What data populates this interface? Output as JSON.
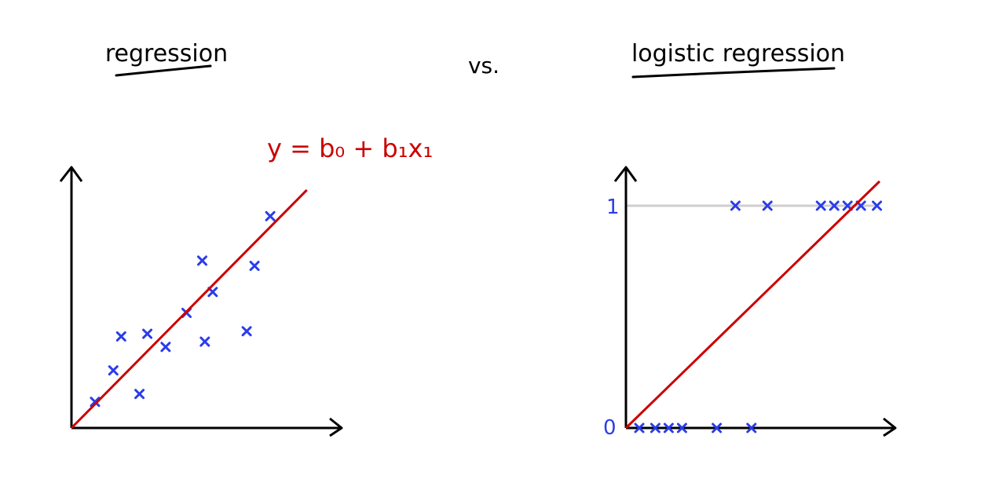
{
  "left_title": "regression",
  "vs_label": "vs.",
  "right_title": "logistic regression",
  "equation": "y = b₀ + b₁x₁",
  "right_y_ticks": [
    "1",
    "0"
  ],
  "point_marker": "x",
  "colors": {
    "axis": "#000000",
    "line": "#cc0000",
    "points": "#2b3de8",
    "guide": "#cfcfcf",
    "equation": "#cc0000",
    "ticks": "#2b3de8"
  },
  "chart_data": [
    {
      "type": "scatter",
      "name": "regression",
      "points": [
        [
          0.09,
          0.1
        ],
        [
          0.19,
          0.35
        ],
        [
          0.16,
          0.22
        ],
        [
          0.26,
          0.13
        ],
        [
          0.29,
          0.36
        ],
        [
          0.36,
          0.31
        ],
        [
          0.44,
          0.44
        ],
        [
          0.51,
          0.33
        ],
        [
          0.54,
          0.52
        ],
        [
          0.5,
          0.64
        ],
        [
          0.67,
          0.37
        ],
        [
          0.7,
          0.62
        ],
        [
          0.76,
          0.81
        ]
      ],
      "fit_line": {
        "from": [
          0.0,
          0.0
        ],
        "to": [
          0.9,
          0.91
        ]
      }
    },
    {
      "type": "scatter",
      "name": "logistic regression",
      "y_ticks": [
        0,
        1
      ],
      "points": [
        [
          0.05,
          0
        ],
        [
          0.11,
          0
        ],
        [
          0.16,
          0
        ],
        [
          0.21,
          0
        ],
        [
          0.34,
          0
        ],
        [
          0.47,
          0
        ],
        [
          0.41,
          1
        ],
        [
          0.53,
          1
        ],
        [
          0.73,
          1
        ],
        [
          0.78,
          1
        ],
        [
          0.83,
          1
        ],
        [
          0.88,
          1
        ],
        [
          0.94,
          1
        ]
      ],
      "fit_line": {
        "from": [
          0.0,
          0.0
        ],
        "to": [
          0.95,
          1.11
        ]
      }
    }
  ]
}
